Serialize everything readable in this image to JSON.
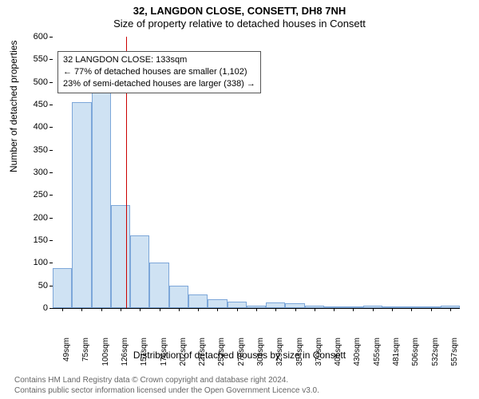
{
  "title_line1": "32, LANGDON CLOSE, CONSETT, DH8 7NH",
  "title_line2": "Size of property relative to detached houses in Consett",
  "ylabel": "Number of detached properties",
  "xlabel": "Distribution of detached houses by size in Consett",
  "chart": {
    "type": "histogram",
    "ylim": [
      0,
      600
    ],
    "ytick_step": 50,
    "bar_color": "#cfe2f3",
    "bar_border": "#7da7d9",
    "background": "#ffffff",
    "marker_color": "#cc0000",
    "marker_x_value": 133,
    "x_start": 36,
    "x_bin_width": 25.5,
    "bars": [
      {
        "label": "49sqm",
        "value": 88
      },
      {
        "label": "75sqm",
        "value": 455
      },
      {
        "label": "100sqm",
        "value": 488
      },
      {
        "label": "126sqm",
        "value": 228
      },
      {
        "label": "151sqm",
        "value": 160
      },
      {
        "label": "176sqm",
        "value": 100
      },
      {
        "label": "202sqm",
        "value": 50
      },
      {
        "label": "227sqm",
        "value": 30
      },
      {
        "label": "252sqm",
        "value": 20
      },
      {
        "label": "278sqm",
        "value": 15
      },
      {
        "label": "303sqm",
        "value": 5
      },
      {
        "label": "329sqm",
        "value": 12
      },
      {
        "label": "354sqm",
        "value": 10
      },
      {
        "label": "379sqm",
        "value": 5
      },
      {
        "label": "405sqm",
        "value": 3
      },
      {
        "label": "430sqm",
        "value": 3
      },
      {
        "label": "455sqm",
        "value": 5
      },
      {
        "label": "481sqm",
        "value": 3
      },
      {
        "label": "506sqm",
        "value": 3
      },
      {
        "label": "532sqm",
        "value": 0
      },
      {
        "label": "557sqm",
        "value": 5
      }
    ]
  },
  "info_box": {
    "line1": "32 LANGDON CLOSE: 133sqm",
    "line2": "← 77% of detached houses are smaller (1,102)",
    "line3": "23% of semi-detached houses are larger (338) →"
  },
  "footer": {
    "line1": "Contains HM Land Registry data © Crown copyright and database right 2024.",
    "line2": "Contains public sector information licensed under the Open Government Licence v3.0."
  }
}
